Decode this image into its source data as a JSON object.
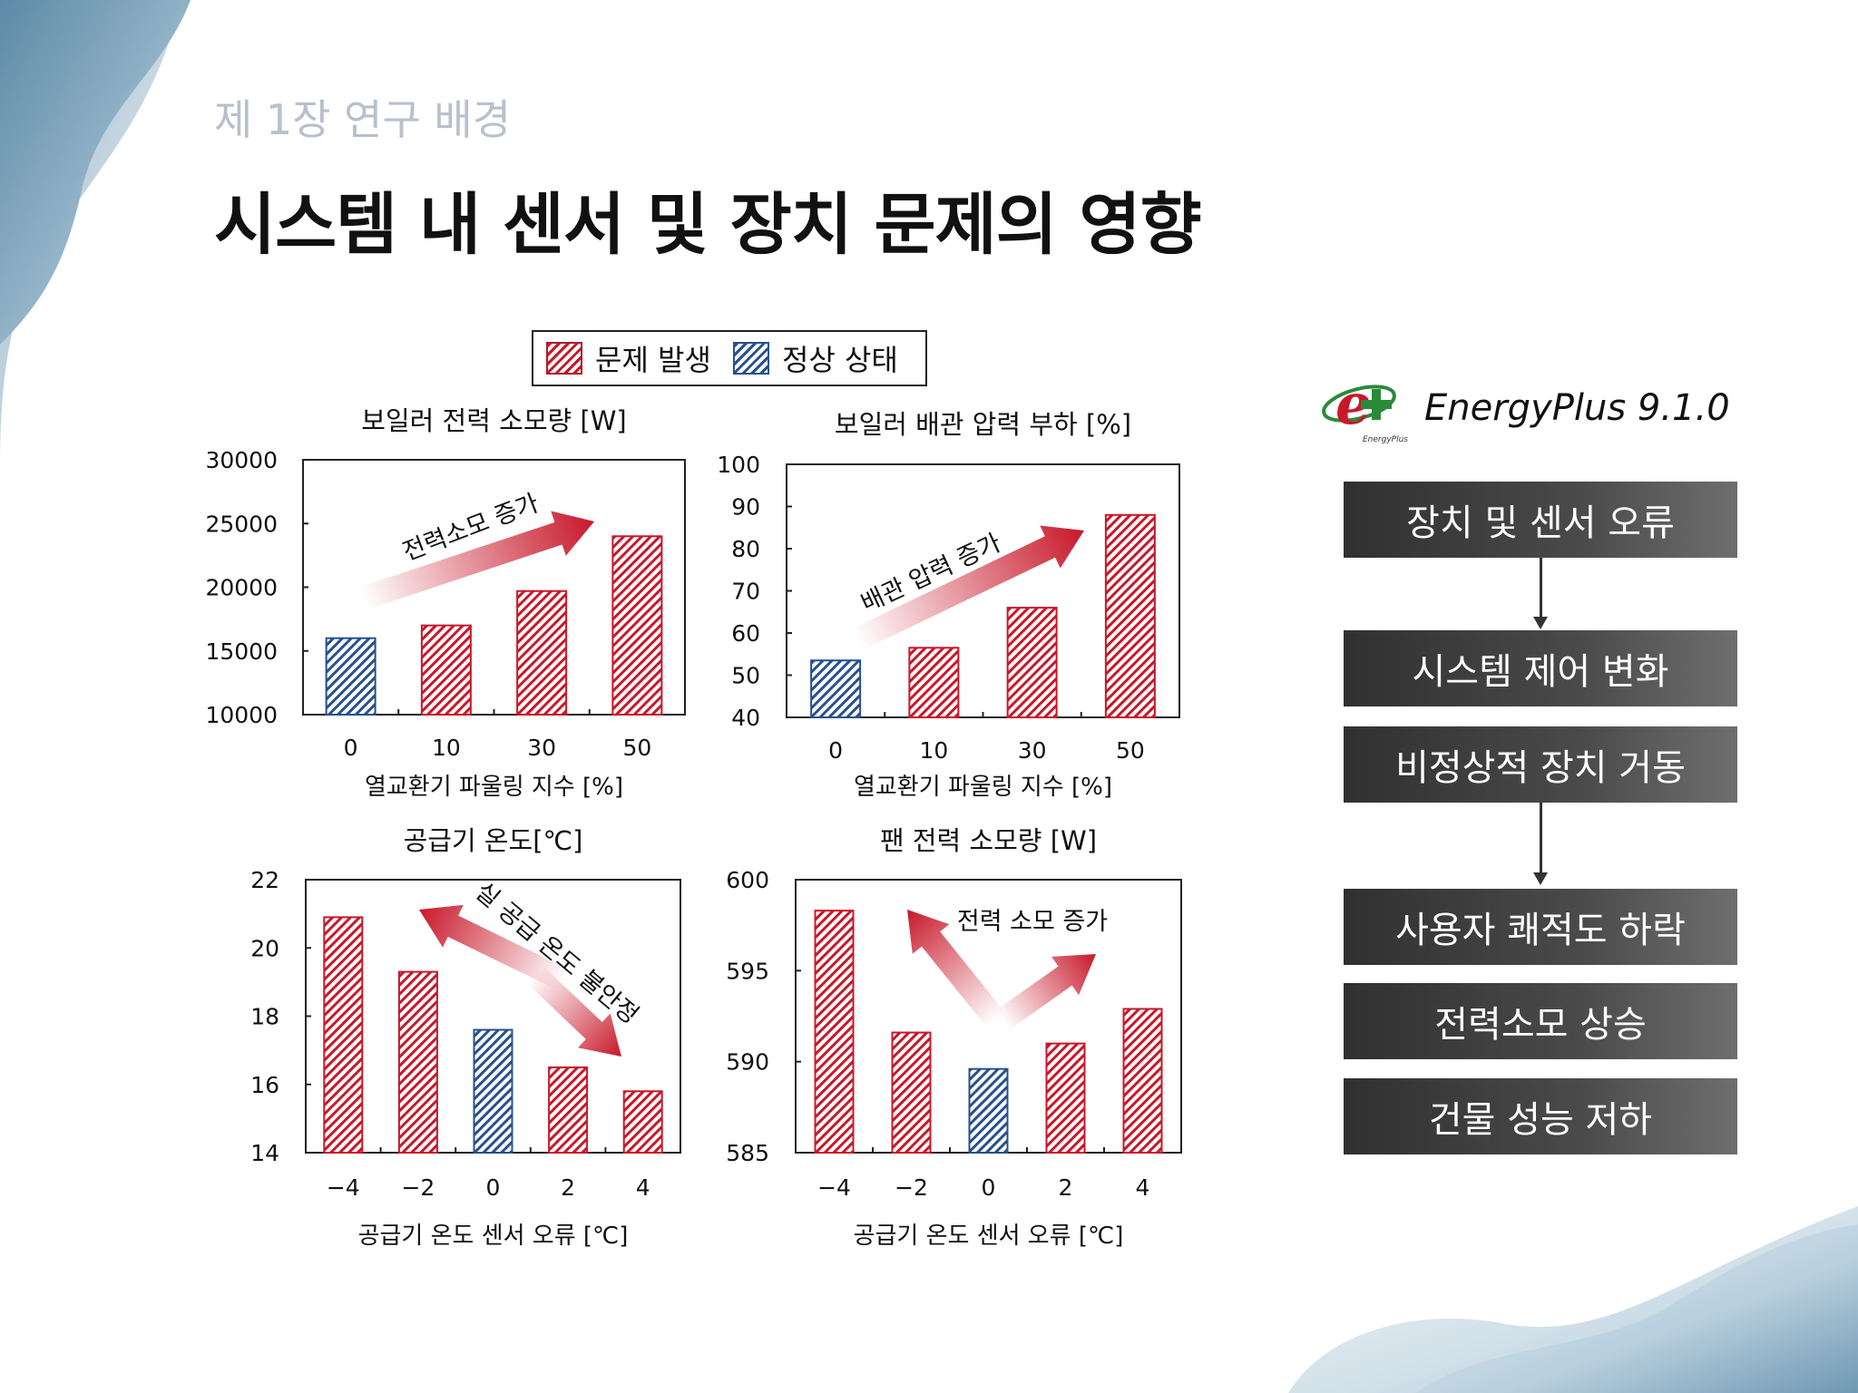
{
  "header": {
    "chapter": "제 1장 연구 배경",
    "title": "시스템 내 센서 및 장치 문제의 영향"
  },
  "legend": {
    "problem": "문제 발생",
    "normal": "정상 상태"
  },
  "colors": {
    "problem": "#c8182a",
    "normal": "#27508f",
    "arrow": "#c8182a"
  },
  "energyplus": {
    "label": "EnergyPlus 9.1.0",
    "logo_small": "EnergyPlus",
    "logo_icon": "energyplus-logo"
  },
  "flow": {
    "boxes": [
      "장치 및 센서 오류",
      "시스템 제어 변화",
      "비정상적 장치 거동",
      "사용자 쾌적도 하락",
      "전력소모 상승",
      "건물 성능 저하"
    ]
  },
  "chart_data": [
    {
      "type": "bar",
      "title": "보일러 전력 소모량 [W]",
      "xlabel": "열교환기 파울링 지수 [%]",
      "categories": [
        "0",
        "10",
        "30",
        "50"
      ],
      "values": [
        16000,
        17000,
        19700,
        24000
      ],
      "status": [
        "normal",
        "problem",
        "problem",
        "problem"
      ],
      "ylim": [
        10000,
        30000
      ],
      "yticks": [
        "30000",
        "25000",
        "20000",
        "15000",
        "10000"
      ],
      "annotation": "전력소모 증가"
    },
    {
      "type": "bar",
      "title": "보일러 배관 압력 부하 [%]",
      "xlabel": "열교환기 파울링 지수 [%]",
      "categories": [
        "0",
        "10",
        "30",
        "50"
      ],
      "values": [
        53.5,
        56.5,
        66,
        88
      ],
      "status": [
        "normal",
        "problem",
        "problem",
        "problem"
      ],
      "ylim": [
        40,
        100
      ],
      "yticks": [
        "100",
        "90",
        "80",
        "70",
        "60",
        "50",
        "40"
      ],
      "annotation": "배관 압력 증가"
    },
    {
      "type": "bar",
      "title": "공급기 온도[℃]",
      "xlabel": "공급기 온도 센서 오류 [℃]",
      "categories": [
        "−4",
        "−2",
        "0",
        "2",
        "4"
      ],
      "values": [
        20.9,
        19.3,
        17.6,
        16.5,
        15.8
      ],
      "status": [
        "problem",
        "problem",
        "normal",
        "problem",
        "problem"
      ],
      "ylim": [
        14,
        22
      ],
      "yticks": [
        "22",
        "20",
        "18",
        "16",
        "14"
      ],
      "annotation": "실 공급 온도 불안정"
    },
    {
      "type": "bar",
      "title": "팬 전력 소모량 [W]",
      "xlabel": "공급기 온도 센서 오류 [℃]",
      "categories": [
        "−4",
        "−2",
        "0",
        "2",
        "4"
      ],
      "values": [
        598.3,
        591.6,
        589.6,
        591.0,
        592.9
      ],
      "status": [
        "problem",
        "problem",
        "normal",
        "problem",
        "problem"
      ],
      "ylim": [
        585,
        600
      ],
      "yticks": [
        "600",
        "595",
        "590",
        "585"
      ],
      "annotation": "전력 소모 증가"
    }
  ]
}
